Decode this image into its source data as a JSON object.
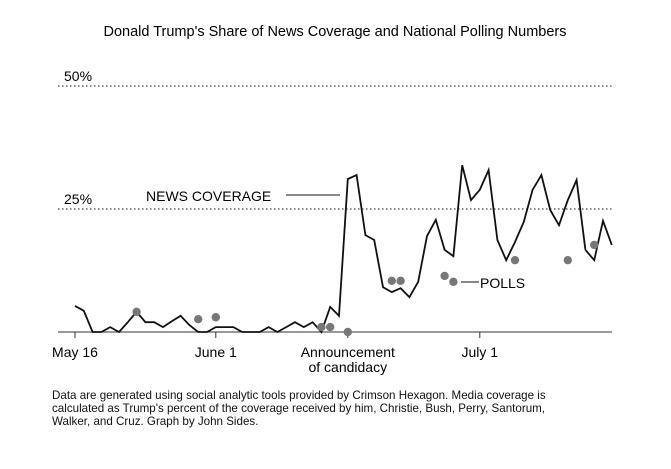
{
  "chart_data": {
    "type": "line",
    "title": "Donald Trump's Share of News Coverage and National Polling Numbers",
    "xlabel": "",
    "ylabel": "",
    "x_unit": "days since May 16",
    "xlim": [
      0,
      61
    ],
    "ylim": [
      0,
      50
    ],
    "grid": false,
    "legend": "none (direct labels)",
    "reference_lines": [
      {
        "value": 50,
        "label": "50%",
        "style": "dotted"
      },
      {
        "value": 25,
        "label": "25%",
        "style": "dotted"
      }
    ],
    "x_ticks": [
      {
        "day": 0,
        "label": "May 16"
      },
      {
        "day": 16,
        "label": "June 1"
      },
      {
        "day": 31,
        "label": "Announcement\nof candidacy",
        "lines": [
          "Announcement",
          "of candidacy"
        ]
      },
      {
        "day": 46,
        "label": "July 1"
      }
    ],
    "series": [
      {
        "name": "News coverage",
        "kind": "line",
        "color": "#111111",
        "x": [
          0,
          1,
          2,
          3,
          4,
          5,
          6,
          7,
          8,
          9,
          10,
          11,
          12,
          13,
          14,
          15,
          16,
          17,
          18,
          19,
          20,
          21,
          22,
          23,
          24,
          25,
          26,
          27,
          28,
          29,
          30,
          31,
          32,
          33,
          34,
          35,
          36,
          37,
          38,
          39,
          40,
          41,
          42,
          43,
          44,
          45,
          46,
          47,
          48,
          49,
          50,
          51,
          52,
          53,
          54,
          55,
          56,
          57,
          58,
          59,
          60,
          61
        ],
        "values": [
          5.3,
          4.3,
          0,
          0,
          1.0,
          0,
          2.0,
          4.1,
          2.0,
          2.0,
          1.0,
          2.2,
          3.3,
          1.4,
          0,
          0,
          1.0,
          1.0,
          1.0,
          0,
          0,
          0,
          1.0,
          0,
          1.0,
          2.0,
          1.0,
          2.0,
          0,
          5.1,
          3.3,
          31.1,
          31.9,
          19.7,
          18.7,
          9.1,
          8.1,
          8.9,
          7.1,
          10.2,
          19.5,
          22.8,
          16.7,
          15.4,
          33.9,
          26.8,
          28.9,
          32.9,
          18.7,
          14.6,
          18.3,
          22.4,
          28.9,
          31.9,
          24.8,
          21.7,
          26.8,
          30.9,
          16.7,
          14.6,
          22.6,
          17.7
        ]
      },
      {
        "name": "Polls",
        "kind": "scatter",
        "color": "#777777",
        "x": [
          7,
          14,
          16,
          28,
          29,
          31,
          36,
          37,
          42,
          43,
          50,
          56,
          59
        ],
        "values": [
          4.1,
          2.6,
          3.0,
          1.0,
          1.0,
          0,
          10.4,
          10.4,
          11.4,
          10.2,
          14.6,
          14.6,
          17.7
        ]
      }
    ],
    "annotations": [
      {
        "text": "NEWS COVERAGE",
        "target": "News coverage",
        "at_day": 30
      },
      {
        "text": "POLLS",
        "target": "Polls",
        "at_day": 43
      }
    ],
    "footnote": "Data are generated using social analytic tools provided by Crimson Hexagon. Media coverage is calculated as Trump's percent of the coverage received by him, Christie, Bush, Perry, Santorum, Walker, and Cruz. Graph by John Sides."
  }
}
